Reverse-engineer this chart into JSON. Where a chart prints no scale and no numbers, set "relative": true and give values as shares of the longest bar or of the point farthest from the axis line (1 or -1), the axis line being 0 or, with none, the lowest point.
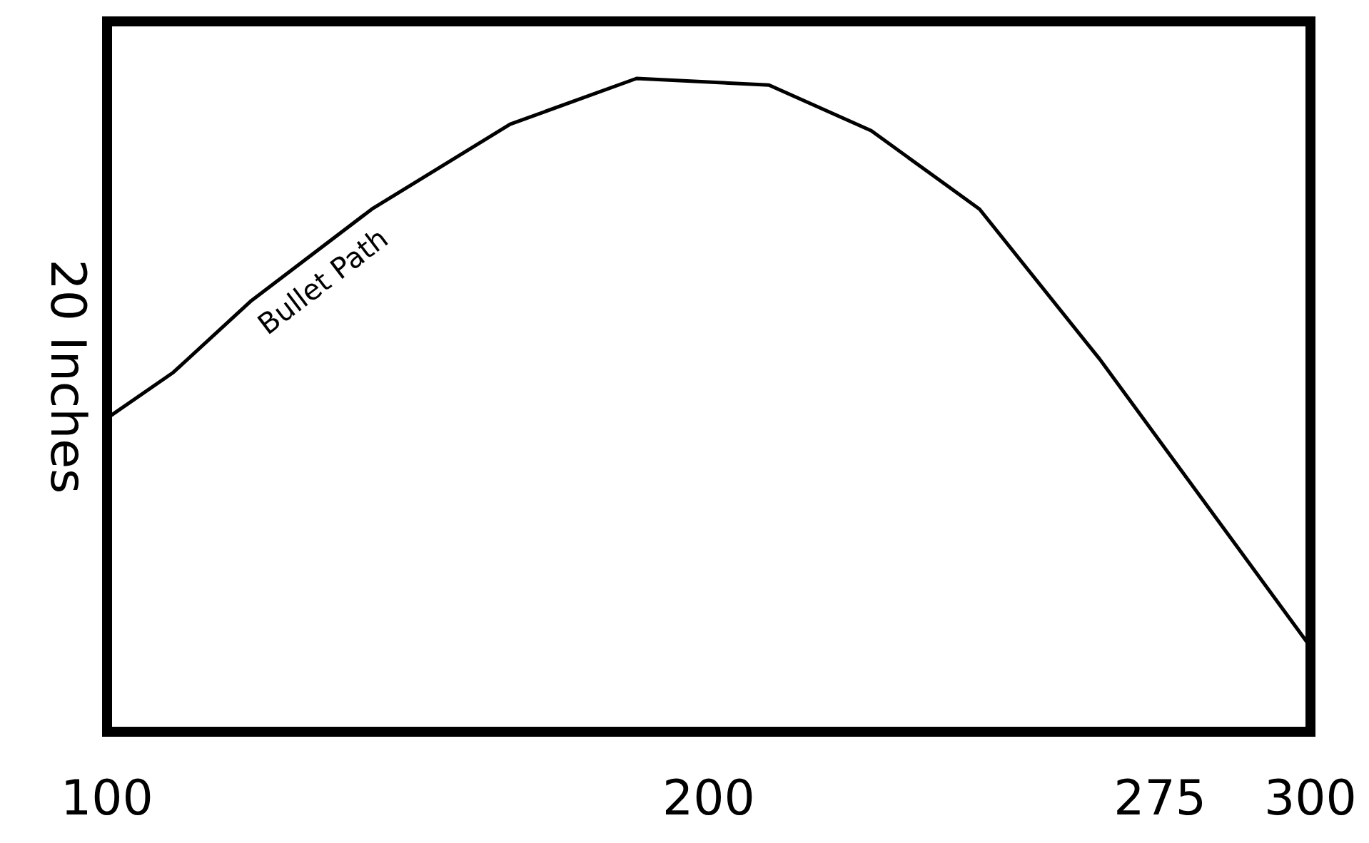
{
  "chart_data": {
    "type": "line",
    "relative": true,
    "ylabel": "20 Inches",
    "xlim": [
      100,
      300
    ],
    "xticks": [
      100,
      200,
      275,
      300
    ],
    "grid": false,
    "line_style": "solid",
    "annotations": [
      "Bullet Path"
    ],
    "series": [
      {
        "color": "#000000",
        "x": [
          100,
          111,
          124,
          144,
          167,
          188,
          210,
          227,
          245,
          265,
          300
        ],
        "values": [
          0.48,
          0.55,
          0.66,
          0.8,
          0.93,
          1,
          0.99,
          0.92,
          0.8,
          0.57,
          0.13
        ]
      }
    ]
  }
}
